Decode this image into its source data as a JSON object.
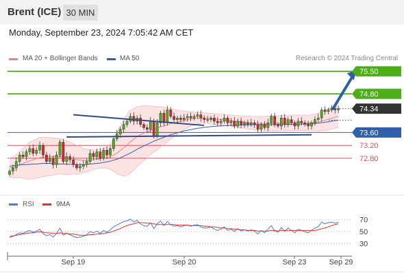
{
  "header": {
    "instrument": "Brent (ICE)",
    "timeframe": "30 MIN"
  },
  "datetime": "Monday, September 23, 2024 7:05:42 AM CET",
  "legend": {
    "ma20_label": "MA 20 + Bollinger Bands",
    "ma20_color": "#f08080",
    "ma50_label": "MA 50",
    "ma50_color": "#2e5fa8",
    "copyright": "Research © 2024 Trading Central"
  },
  "rsi_legend": {
    "rsi_label": "RSI",
    "rsi_color": "#5577dd",
    "ma9_label": "9MA",
    "ma9_color": "#e03030"
  },
  "chart_data": [
    {
      "type": "candlestick",
      "title": "Brent (ICE)",
      "timeframe": "30 MIN",
      "x_ticks": [
        "Sep 19",
        "Sep 20",
        "Sep 23",
        "Sep 29"
      ],
      "levels": [
        {
          "value": 75.5,
          "label": "75.50",
          "kind": "target",
          "color": "#4caf1a"
        },
        {
          "value": 74.8,
          "label": "74.80",
          "kind": "target",
          "color": "#4caf1a"
        },
        {
          "value": 74.34,
          "label": "74.34",
          "kind": "last",
          "color": "#333333"
        },
        {
          "value": 73.6,
          "label": "73.60",
          "kind": "pivot",
          "color": "#2e5fa8"
        },
        {
          "value": 73.2,
          "label": "73.20",
          "kind": "support",
          "color": "#e05050"
        },
        {
          "value": 72.8,
          "label": "72.80",
          "kind": "support",
          "color": "#e05050"
        }
      ],
      "price_range": [
        71.8,
        75.8
      ],
      "close": [
        72.4,
        72.5,
        72.7,
        72.9,
        72.85,
        73.0,
        73.1,
        72.95,
        73.05,
        73.2,
        72.9,
        72.7,
        72.8,
        72.6,
        72.9,
        73.3,
        72.7,
        72.85,
        72.75,
        72.6,
        72.5,
        72.55,
        72.6,
        72.7,
        72.95,
        72.85,
        73.0,
        72.8,
        73.05,
        72.9,
        73.1,
        73.4,
        73.55,
        73.7,
        73.85,
        73.95,
        74.1,
        73.95,
        74.05,
        73.85,
        73.75,
        73.7,
        73.95,
        73.5,
        73.9,
        74.2,
        73.9,
        74.3,
        74.1,
        74.0,
        74.05,
        74.0,
        74.05,
        74.1,
        74.05,
        74.1,
        74.15,
        74.05,
        74.0,
        74.0,
        74.05,
        73.95,
        73.9,
        73.95,
        74.05,
        73.9,
        73.95,
        73.8,
        73.95,
        73.85,
        73.9,
        73.85,
        73.9,
        73.85,
        73.7,
        73.85,
        73.75,
        73.9,
        74.1,
        73.85,
        73.8,
        74.05,
        73.85,
        74.0,
        73.9,
        73.8,
        73.95,
        73.9,
        73.85,
        73.8,
        73.9,
        74.0,
        74.05,
        74.3,
        74.25,
        74.3,
        74.35,
        74.3,
        74.34
      ],
      "ma20": [
        72.5,
        72.52,
        72.55,
        72.6,
        72.64,
        72.68,
        72.72,
        72.75,
        72.79,
        72.82,
        72.84,
        72.85,
        72.85,
        72.85,
        72.86,
        72.86,
        72.84,
        72.82,
        72.8,
        72.78,
        72.75,
        72.74,
        72.73,
        72.73,
        72.74,
        72.75,
        72.77,
        72.78,
        72.8,
        72.82,
        72.85,
        72.9,
        72.96,
        73.04,
        73.12,
        73.21,
        73.31,
        73.39,
        73.47,
        73.53,
        73.58,
        73.62,
        73.67,
        73.7,
        73.73,
        73.78,
        73.8,
        73.84,
        73.87,
        73.9,
        73.92,
        73.95,
        73.97,
        74.0,
        74.02,
        74.03,
        74.04,
        74.05,
        74.05,
        74.04,
        74.03,
        74.02,
        74.01,
        74.0,
        73.99,
        73.98,
        73.97,
        73.95,
        73.94,
        73.93,
        73.92,
        73.91,
        73.9,
        73.89,
        73.88,
        73.88,
        73.87,
        73.88,
        73.88,
        73.88,
        73.88,
        73.89,
        73.89,
        73.9,
        73.9,
        73.9,
        73.9,
        73.9,
        73.9,
        73.9,
        73.9,
        73.91,
        73.92,
        73.95,
        73.98,
        74.01,
        74.04,
        74.07,
        74.1
      ],
      "bb_upper": [
        72.8,
        72.85,
        72.9,
        73.0,
        73.1,
        73.2,
        73.3,
        73.35,
        73.4,
        73.45,
        73.45,
        73.45,
        73.44,
        73.43,
        73.42,
        73.4,
        73.38,
        73.35,
        73.3,
        73.25,
        73.2,
        73.15,
        73.1,
        73.08,
        73.07,
        73.06,
        73.06,
        73.07,
        73.1,
        73.15,
        73.25,
        73.4,
        73.6,
        73.8,
        74.0,
        74.15,
        74.28,
        74.35,
        74.4,
        74.42,
        74.43,
        74.43,
        74.42,
        74.41,
        74.4,
        74.4,
        74.38,
        74.36,
        74.34,
        74.32,
        74.3,
        74.28,
        74.26,
        74.25,
        74.24,
        74.23,
        74.22,
        74.22,
        74.21,
        74.2,
        74.2,
        74.19,
        74.18,
        74.17,
        74.16,
        74.15,
        74.14,
        74.13,
        74.12,
        74.12,
        74.11,
        74.11,
        74.1,
        74.1,
        74.1,
        74.1,
        74.1,
        74.11,
        74.12,
        74.12,
        74.12,
        74.13,
        74.13,
        74.14,
        74.14,
        74.14,
        74.14,
        74.14,
        74.14,
        74.14,
        74.15,
        74.17,
        74.2,
        74.25,
        74.3,
        74.34,
        74.38,
        74.41,
        74.44
      ],
      "bb_lower": [
        72.2,
        72.19,
        72.2,
        72.2,
        72.18,
        72.16,
        72.14,
        72.15,
        72.18,
        72.2,
        72.23,
        72.25,
        72.26,
        72.27,
        72.3,
        72.32,
        72.3,
        72.29,
        72.3,
        72.31,
        72.3,
        72.33,
        72.36,
        72.38,
        72.41,
        72.44,
        72.48,
        72.49,
        72.5,
        72.49,
        72.45,
        72.4,
        72.32,
        72.28,
        72.24,
        72.27,
        72.34,
        72.43,
        72.54,
        72.64,
        72.73,
        72.81,
        72.92,
        72.99,
        73.06,
        73.16,
        73.22,
        73.32,
        73.4,
        73.48,
        73.54,
        73.62,
        73.68,
        73.75,
        73.8,
        73.83,
        73.86,
        73.88,
        73.89,
        73.88,
        73.86,
        73.85,
        73.84,
        73.83,
        73.82,
        73.81,
        73.8,
        73.77,
        73.76,
        73.74,
        73.73,
        73.71,
        73.7,
        73.68,
        73.66,
        73.66,
        73.64,
        73.65,
        73.64,
        73.64,
        73.64,
        73.65,
        73.65,
        73.66,
        73.66,
        73.66,
        73.66,
        73.66,
        73.66,
        73.66,
        73.65,
        73.65,
        73.64,
        73.65,
        73.66,
        73.68,
        73.7,
        73.73,
        73.76
      ],
      "ma50": [
        72.55,
        72.57,
        72.58,
        72.59,
        72.6,
        72.6,
        72.61,
        72.62,
        72.62,
        72.63,
        72.64,
        72.64,
        72.64,
        72.63,
        72.63,
        72.62,
        72.62,
        72.62,
        72.61,
        72.61,
        72.6,
        72.6,
        72.6,
        72.61,
        72.62,
        72.63,
        72.64,
        72.65,
        72.67,
        72.69,
        72.71,
        72.74,
        72.77,
        72.81,
        72.86,
        72.91,
        72.96,
        73.02,
        73.08,
        73.13,
        73.18,
        73.23,
        73.28,
        73.33,
        73.37,
        73.41,
        73.45,
        73.49,
        73.53,
        73.56,
        73.59,
        73.62,
        73.65,
        73.67,
        73.69,
        73.71,
        73.73,
        73.74,
        73.76,
        73.77,
        73.78,
        73.79,
        73.8,
        73.8,
        73.81,
        73.82,
        73.82,
        73.82,
        73.83,
        73.83,
        73.83,
        73.84,
        73.84,
        73.84,
        73.84,
        73.84,
        73.84,
        73.84,
        73.84,
        73.84,
        73.85,
        73.85,
        73.85,
        73.85,
        73.85,
        73.85,
        73.86,
        73.86,
        73.86,
        73.87,
        73.87,
        73.88,
        73.89,
        73.9,
        73.92,
        73.93,
        73.95,
        73.97,
        73.98
      ],
      "trendlines": [
        {
          "from": [
            19,
            74.15
          ],
          "to": [
            58,
            73.82
          ]
        },
        {
          "from": [
            17,
            73.46
          ],
          "to": [
            90,
            73.53
          ]
        }
      ],
      "projection": {
        "from": [
          96,
          74.34
        ],
        "to": [
          103,
          75.5
        ]
      }
    },
    {
      "type": "line",
      "title": "RSI",
      "yticks": [
        30,
        50,
        70
      ],
      "ylim": [
        10,
        80
      ],
      "series": [
        {
          "name": "RSI",
          "color": "#5577dd",
          "values": [
            40,
            42,
            45,
            48,
            47,
            50,
            52,
            49,
            51,
            54,
            47,
            43,
            45,
            41,
            47,
            56,
            44,
            47,
            45,
            42,
            40,
            41,
            42,
            45,
            50,
            48,
            51,
            47,
            52,
            49,
            53,
            58,
            61,
            64,
            67,
            68,
            71,
            66,
            69,
            63,
            60,
            59,
            65,
            55,
            63,
            68,
            60,
            67,
            62,
            59,
            60,
            58,
            60,
            61,
            59,
            61,
            62,
            58,
            56,
            56,
            58,
            54,
            52,
            54,
            58,
            52,
            54,
            50,
            55,
            51,
            53,
            51,
            53,
            51,
            46,
            52,
            48,
            54,
            60,
            51,
            49,
            57,
            50,
            56,
            52,
            48,
            54,
            52,
            50,
            48,
            52,
            56,
            58,
            66,
            63,
            65,
            66,
            64,
            66
          ]
        },
        {
          "name": "9MA",
          "color": "#e03030",
          "values": [
            42,
            43,
            44,
            45,
            46,
            47,
            48,
            48,
            49,
            50,
            49,
            48,
            48,
            47,
            47,
            48,
            47,
            47,
            46,
            46,
            45,
            44,
            44,
            44,
            45,
            45,
            46,
            46,
            47,
            48,
            49,
            51,
            53,
            55,
            58,
            60,
            62,
            63,
            65,
            65,
            65,
            64,
            64,
            63,
            62,
            62,
            62,
            62,
            62,
            62,
            61,
            61,
            61,
            61,
            60,
            60,
            60,
            60,
            59,
            59,
            58,
            58,
            57,
            56,
            56,
            55,
            55,
            54,
            54,
            53,
            53,
            52,
            52,
            52,
            51,
            51,
            51,
            51,
            52,
            52,
            51,
            52,
            52,
            52,
            52,
            52,
            52,
            52,
            52,
            52,
            52,
            52,
            53,
            55,
            56,
            58,
            60,
            62,
            63
          ]
        }
      ]
    }
  ]
}
